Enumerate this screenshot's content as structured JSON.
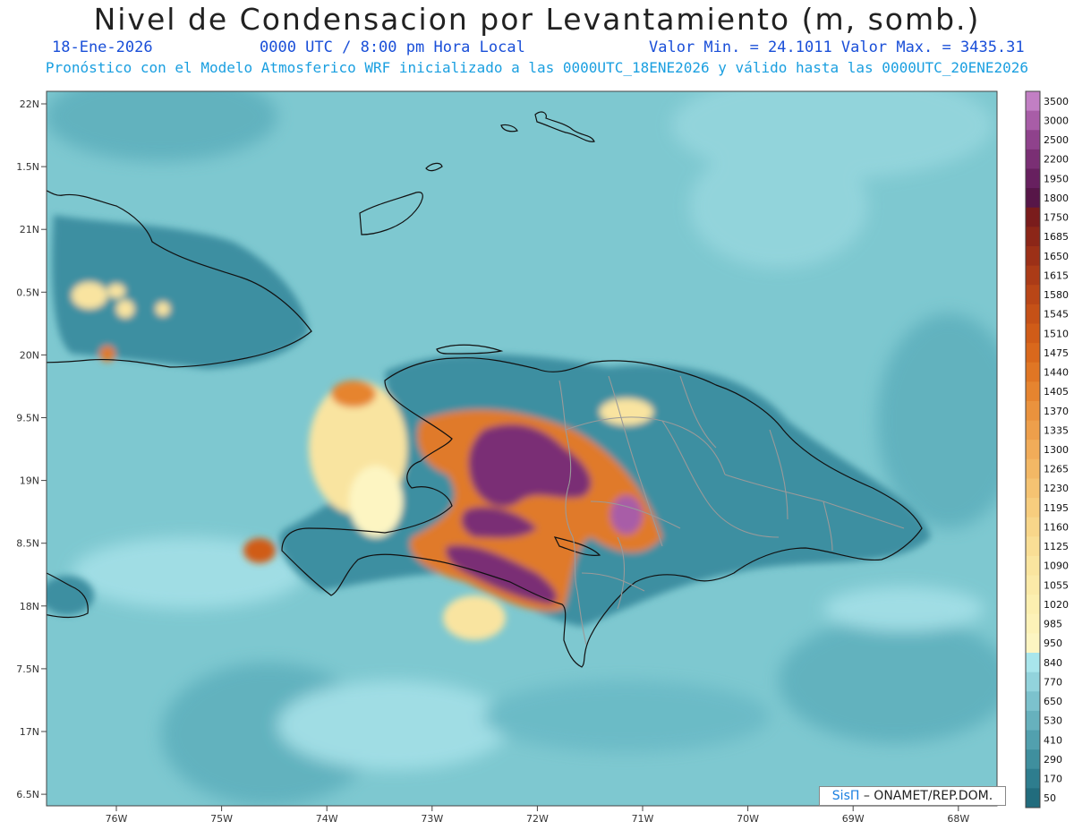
{
  "title": "Nivel de Condensacion por Levantamiento (m, somb.)",
  "date": "18-Ene-2026",
  "time": "0000 UTC / 8:00 pm Hora Local",
  "minmax": "Valor Min. = 24.1011  Valor Max. = 3435.31",
  "description": "Pronóstico con el Modelo Atmosferico WRF inicializado a las 0000UTC_18ENE2026 y válido hasta las  0000UTC_20ENE2026",
  "credit": {
    "brand": "SisΠ",
    "org": "– ONAMET/REP.DOM."
  },
  "lat_labels": [
    "22N",
    "1.5N",
    "21N",
    "0.5N",
    "20N",
    "9.5N",
    "19N",
    "8.5N",
    "18N",
    "7.5N",
    "17N",
    "6.5N"
  ],
  "lon_labels": [
    "76W",
    "75W",
    "74W",
    "73W",
    "72W",
    "71W",
    "70W",
    "69W",
    "68W"
  ],
  "colorbar": {
    "labels": [
      "3500",
      "3000",
      "2500",
      "2200",
      "1950",
      "1800",
      "1750",
      "1685",
      "1650",
      "1615",
      "1580",
      "1545",
      "1510",
      "1475",
      "1440",
      "1405",
      "1370",
      "1335",
      "1300",
      "1265",
      "1230",
      "1195",
      "1160",
      "1125",
      "1090",
      "1055",
      "1020",
      "985",
      "950",
      "840",
      "770",
      "650",
      "530",
      "410",
      "290",
      "170",
      "50"
    ],
    "colors": [
      "#c27fc4",
      "#a85da7",
      "#8f428c",
      "#7a2f74",
      "#67205f",
      "#571648",
      "#7a1c1c",
      "#8c2618",
      "#9c3017",
      "#ab3b17",
      "#b94617",
      "#c55117",
      "#d05c18",
      "#d9681c",
      "#e07624",
      "#e6842f",
      "#ea923d",
      "#ee9f4b",
      "#f1ac59",
      "#f3b865",
      "#f5c372",
      "#f7cd7e",
      "#f8d68a",
      "#f9de95",
      "#fae59f",
      "#fbeaa8",
      "#fcefb0",
      "#fdf2b8",
      "#fdf5c2",
      "#a9e6ec",
      "#92d3dc",
      "#7cc2cd",
      "#67b1bd",
      "#52a0ae",
      "#3f8f9e",
      "#2e7d8e",
      "#216c7d"
    ]
  },
  "colors": {
    "ocean": "#7ec8d0",
    "ocean_dark": "#5eb0bd",
    "ocean_light": "#a4e0e7",
    "land_teal": "#3e8fa1",
    "orange": "#e07a2a",
    "yellow": "#f9e4a0",
    "purple": "#7a2f74",
    "coast": "#111111",
    "borders": "#9a9a9a"
  }
}
